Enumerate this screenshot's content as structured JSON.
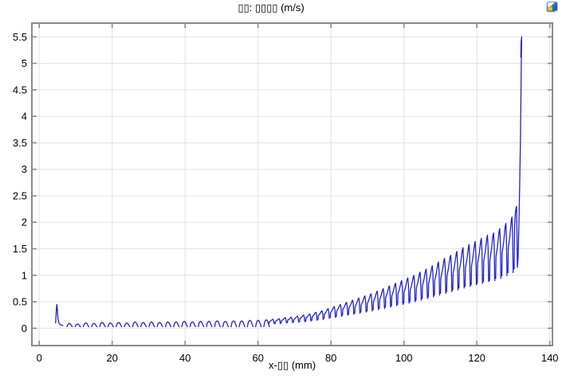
{
  "window": {
    "icon_name": "plot-window-icon"
  },
  "chart_data": {
    "type": "line",
    "title": "▯▯: ▯▯▯▯ (m/s)",
    "xlabel": "x-▯▯ (mm)",
    "ylabel": "",
    "xlim": [
      -2,
      141
    ],
    "ylim": [
      -0.32,
      5.77
    ],
    "grid": true,
    "legend": "none",
    "x_tick_vals": [
      0,
      20,
      40,
      60,
      80,
      100,
      120,
      140
    ],
    "x_tick_labels": [
      "0",
      "20",
      "40",
      "60",
      "80",
      "100",
      "120",
      "140"
    ],
    "y_tick_vals": [
      0,
      0.5,
      1,
      1.5,
      2,
      2.5,
      3,
      3.5,
      4,
      4.5,
      5,
      5.5
    ],
    "y_tick_labels": [
      "0",
      "0.5",
      "1",
      "1.5",
      "2",
      "2.5",
      "3",
      "3.5",
      "4",
      "4.5",
      "5",
      "5.5"
    ],
    "colors": {
      "line": "#2222cd",
      "frame": "#8a8a8a",
      "grid": "#e2e2e2",
      "background": "#ffffff"
    },
    "segments": [
      {
        "name": "inlet-spike",
        "points": [
          [
            4.5,
            0.1
          ],
          [
            4.65,
            0.3
          ],
          [
            4.8,
            0.45
          ],
          [
            4.95,
            0.4
          ],
          [
            5.1,
            0.22
          ],
          [
            5.3,
            0.12
          ],
          [
            5.6,
            0.08
          ],
          [
            6.1,
            0.06
          ],
          [
            6.5,
            0.05
          ]
        ]
      },
      {
        "name": "outlet-spike",
        "points": [
          [
            130.2,
            1.12
          ],
          [
            130.35,
            1.95
          ],
          [
            130.55,
            2.18
          ],
          [
            130.75,
            2.28
          ],
          [
            130.88,
            2.3
          ],
          [
            131.0,
            1.8
          ],
          [
            131.1,
            1.15
          ],
          [
            131.3,
            1.32
          ],
          [
            131.55,
            2.0
          ],
          [
            131.75,
            2.8
          ],
          [
            131.95,
            3.6
          ],
          [
            132.08,
            4.4
          ],
          [
            132.18,
            5.0
          ],
          [
            132.28,
            5.5
          ],
          [
            132.14,
            5.4
          ],
          [
            132.04,
            5.12
          ]
        ]
      }
    ],
    "bump_trains": [
      {
        "name": "low-bumps",
        "shape": "bump",
        "start": 7.6,
        "period": 2.25,
        "width": 1.5,
        "base": 0.03,
        "peaks": [
          0.09,
          0.08,
          0.1,
          0.09,
          0.11,
          0.1,
          0.11,
          0.1,
          0.12,
          0.11,
          0.12,
          0.11,
          0.12,
          0.12,
          0.13,
          0.12,
          0.13,
          0.13,
          0.14,
          0.13,
          0.14,
          0.14,
          0.15,
          0.15,
          0.16
        ]
      },
      {
        "name": "growing-pulses",
        "shape": "pulse",
        "start": 63.0,
        "period": 1.68,
        "width": 1.42,
        "valley_ratio": 0.5,
        "peaks": [
          0.17,
          0.18,
          0.2,
          0.21,
          0.23,
          0.25,
          0.27,
          0.3,
          0.33,
          0.37,
          0.41,
          0.45,
          0.49,
          0.53,
          0.57,
          0.61,
          0.65,
          0.7,
          0.75,
          0.8,
          0.85,
          0.9,
          0.95,
          1.0,
          1.06,
          1.12,
          1.18,
          1.25,
          1.32,
          1.38,
          1.45,
          1.52,
          1.58,
          1.64,
          1.7,
          1.76,
          1.8,
          1.88,
          1.98,
          2.1
        ]
      }
    ]
  }
}
